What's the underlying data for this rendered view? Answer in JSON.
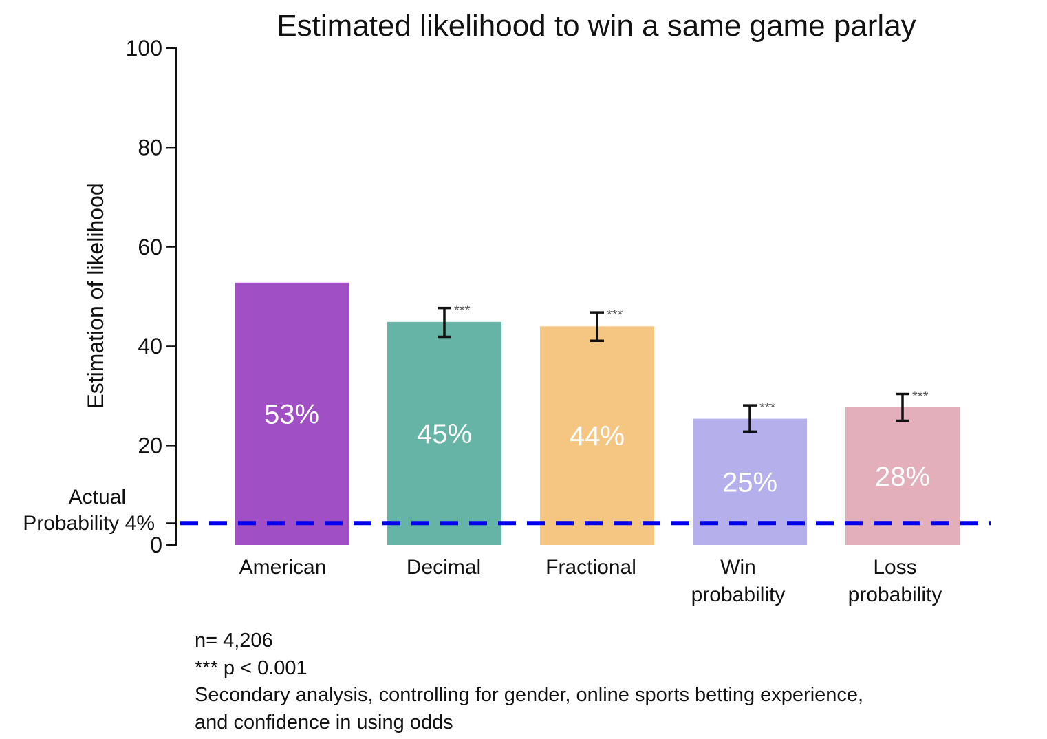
{
  "chart_data": {
    "type": "bar",
    "title": "Estimated likelihood to win a same game parlay",
    "ylabel": "Estimation of likelihood",
    "xlabel": "",
    "ylim": [
      0,
      100
    ],
    "yticks": [
      0,
      20,
      40,
      60,
      80,
      100
    ],
    "grid": false,
    "categories": [
      {
        "lines": [
          "American"
        ]
      },
      {
        "lines": [
          "Decimal"
        ]
      },
      {
        "lines": [
          "Fractional"
        ]
      },
      {
        "lines": [
          "Win",
          "probability"
        ]
      },
      {
        "lines": [
          "Loss",
          "probability"
        ]
      }
    ],
    "values": [
      52.8,
      44.9,
      44.0,
      25.4,
      27.7
    ],
    "value_labels": [
      "53%",
      "45%",
      "44%",
      "25%",
      "28%"
    ],
    "error_bars": [
      null,
      {
        "low": 41.9,
        "high": 47.7
      },
      {
        "low": 41.1,
        "high": 46.8
      },
      {
        "low": 22.8,
        "high": 28.1
      },
      {
        "low": 25.0,
        "high": 30.4
      }
    ],
    "significance": [
      "",
      "***",
      "***",
      "***",
      "***"
    ],
    "colors": [
      "#a04fc4",
      "#66b4a5",
      "#f5c682",
      "#b5afec",
      "#e3afbb"
    ],
    "reference_line": {
      "value": 4.4,
      "label_lines": [
        "Actual",
        "Probability 4%"
      ],
      "color": "#0000ee",
      "style": "dashed"
    }
  },
  "notes": [
    "n= 4,206",
    "*** p < 0.001",
    "Secondary analysis, controlling for gender, online sports betting experience,",
    "and confidence in using odds"
  ]
}
